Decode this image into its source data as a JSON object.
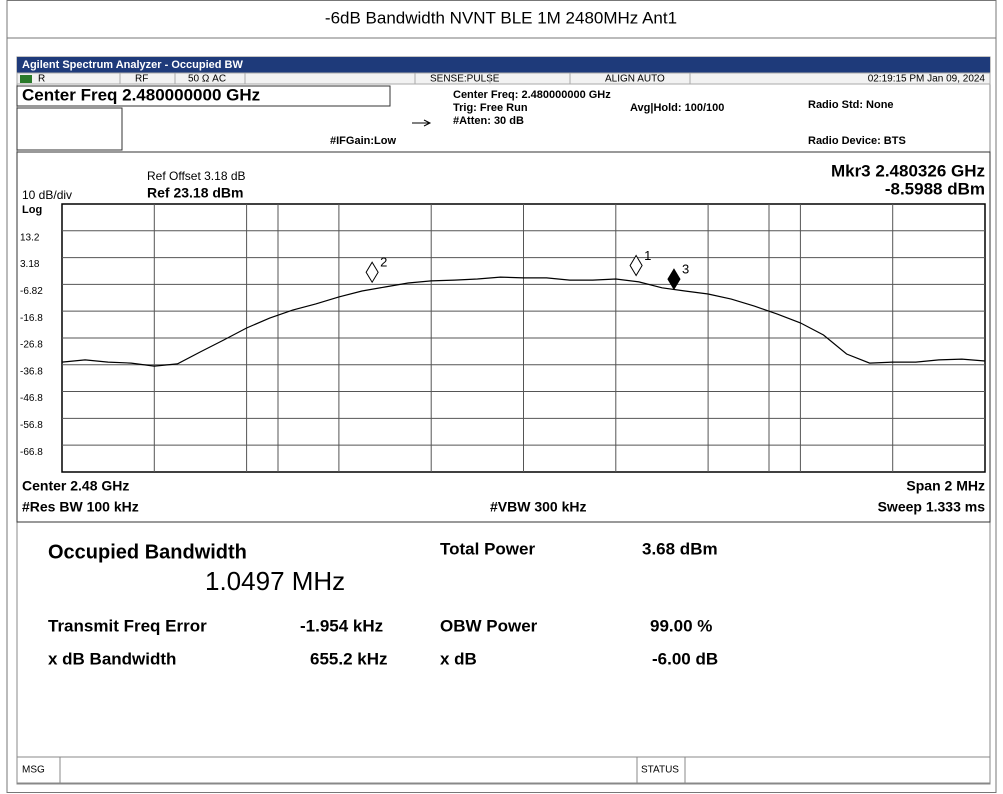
{
  "title": "-6dB Bandwidth NVNT BLE 1M 2480MHz Ant1",
  "window_title": "Agilent Spectrum Analyzer - Occupied BW",
  "status_row": [
    "R",
    "RF",
    "50 Ω  AC",
    "SENSE:PULSE",
    "ALIGN AUTO",
    "02:19:15 PM Jan 09, 2024"
  ],
  "settings": {
    "center_freq": "Center Freq 2.480000000 GHz",
    "if_gain": "#IFGain:Low",
    "info": [
      "Center Freq: 2.480000000 GHz",
      "Trig: Free Run",
      "#Atten: 30 dB"
    ],
    "avg_hold": "Avg|Hold: 100/100",
    "radio_std": "Radio Std: None",
    "radio_device": "Radio Device: BTS"
  },
  "chart_data": {
    "type": "line",
    "ref_offset": "Ref Offset 3.18 dB",
    "scale": "10 dB/div",
    "ref_level": "Ref 23.18 dBm",
    "scale_type": "Log",
    "marker_readout": [
      "Mkr3  2.480326 GHz",
      "-8.5988 dBm"
    ],
    "footer": {
      "center": "Center  2.48 GHz",
      "span": "Span 2 MHz",
      "rbw": "#Res BW  100 kHz",
      "vbw": "#VBW  300 kHz",
      "sweep": "Sweep  1.333 ms"
    },
    "xlim": [
      2.479,
      2.481
    ],
    "ylim": [
      -76.82,
      23.18
    ],
    "yticks": [
      13.2,
      3.18,
      -6.82,
      -16.8,
      -26.8,
      -36.8,
      -46.8,
      -56.8,
      -66.8
    ],
    "color": "#000000",
    "x": [
      2.479,
      2.47905,
      2.4791,
      2.47915,
      2.4792,
      2.47925,
      2.4793,
      2.47935,
      2.4794,
      2.47945,
      2.4795,
      2.47955,
      2.4796,
      2.47965,
      2.4797,
      2.47975,
      2.4798,
      2.47985,
      2.4799,
      2.47995,
      2.48,
      2.48005,
      2.4801,
      2.48015,
      2.4802,
      2.48025,
      2.4803,
      2.48035,
      2.4804,
      2.48045,
      2.4805,
      2.48055,
      2.4806,
      2.48065,
      2.4807,
      2.48075,
      2.4808,
      2.48085,
      2.4809,
      2.48095,
      2.481
    ],
    "values": [
      -35.8,
      -35.0,
      -35.8,
      -36.2,
      -37.3,
      -36.5,
      -32.0,
      -27.6,
      -23.1,
      -19.4,
      -16.4,
      -14.1,
      -11.5,
      -9.3,
      -7.8,
      -6.3,
      -5.5,
      -5.2,
      -4.8,
      -4.1,
      -4.4,
      -4.4,
      -5.2,
      -5.2,
      -4.8,
      -5.9,
      -8.1,
      -9.3,
      -10.4,
      -12.3,
      -14.9,
      -17.9,
      -21.2,
      -25.7,
      -32.8,
      -36.2,
      -35.8,
      -35.8,
      -35.0,
      -34.7,
      -35.4
    ],
    "markers": [
      {
        "label": "1",
        "x": 2.480244,
        "y": -3.5,
        "filled": false
      },
      {
        "label": "2",
        "x": 2.479672,
        "y": -6.0,
        "filled": false
      },
      {
        "label": "3",
        "x": 2.480326,
        "y": -8.5988,
        "filled": true
      }
    ]
  },
  "results": {
    "obw_label": "Occupied Bandwidth",
    "obw_value": "1.0497 MHz",
    "rows": [
      [
        "Total Power",
        "3.68 dBm"
      ],
      [
        "Transmit Freq Error",
        "-1.954 kHz",
        "OBW Power",
        "99.00 %"
      ],
      [
        "x dB Bandwidth",
        "655.2 kHz",
        "x dB",
        "-6.00 dB"
      ]
    ]
  },
  "status_bar": {
    "msg": "MSG",
    "status": "STATUS"
  }
}
